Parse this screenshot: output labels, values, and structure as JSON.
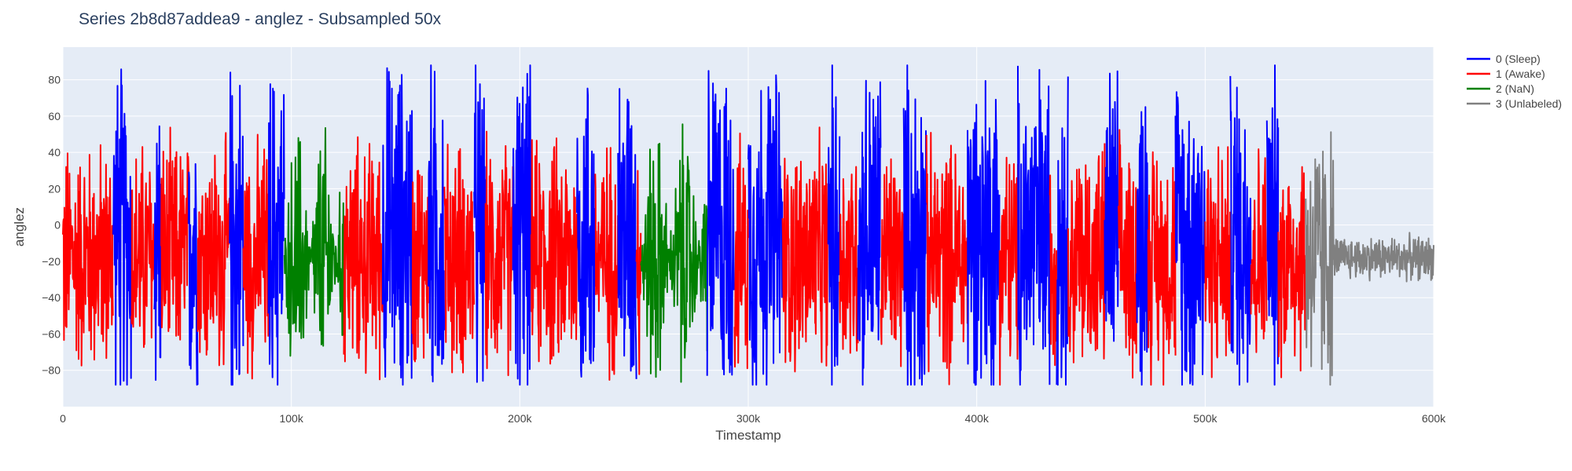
{
  "chart_data": {
    "type": "line",
    "title": "Series 2b8d87addea9 - anglez - Subsampled 50x",
    "xlabel": "Timestamp",
    "ylabel": "anglez",
    "xlim": [
      0,
      600000
    ],
    "ylim": [
      -100,
      98
    ],
    "x_ticks": [
      0,
      100000,
      200000,
      300000,
      400000,
      500000,
      600000
    ],
    "x_tick_labels": [
      "0",
      "100k",
      "200k",
      "300k",
      "400k",
      "500k",
      "600k"
    ],
    "y_ticks": [
      -80,
      -60,
      -40,
      -20,
      0,
      20,
      40,
      60,
      80
    ],
    "y_tick_labels": [
      "−80",
      "−60",
      "−40",
      "−20",
      "0",
      "20",
      "40",
      "60",
      "80"
    ],
    "grid": true,
    "legend_position": "top-right",
    "plot_background": "#e5ecf6",
    "series": [
      {
        "name": "0 (Sleep)",
        "color": "#0000ff",
        "segments": [
          [
            22000,
            30000
          ],
          [
            40000,
            43000
          ],
          [
            55000,
            59000
          ],
          [
            73000,
            79000
          ],
          [
            90000,
            97000
          ],
          [
            140000,
            153000
          ],
          [
            160000,
            167000
          ],
          [
            180000,
            185000
          ],
          [
            197000,
            205000
          ],
          [
            225000,
            233000
          ],
          [
            243000,
            251000
          ],
          [
            282000,
            294000
          ],
          [
            300000,
            315000
          ],
          [
            335000,
            340000
          ],
          [
            348000,
            358000
          ],
          [
            368000,
            378000
          ],
          [
            396000,
            410000
          ],
          [
            418000,
            432000
          ],
          [
            435000,
            440000
          ],
          [
            456000,
            462000
          ],
          [
            470000,
            475000
          ],
          [
            487000,
            500000
          ],
          [
            511000,
            520000
          ],
          [
            527000,
            532000
          ]
        ]
      },
      {
        "name": "1 (Awake)",
        "color": "#ff0000",
        "segments": [
          [
            0,
            22000
          ],
          [
            30000,
            40000
          ],
          [
            43000,
            55000
          ],
          [
            59000,
            73000
          ],
          [
            79000,
            90000
          ],
          [
            123000,
            140000
          ],
          [
            153000,
            160000
          ],
          [
            167000,
            180000
          ],
          [
            185000,
            197000
          ],
          [
            205000,
            225000
          ],
          [
            233000,
            243000
          ],
          [
            251000,
            253000
          ],
          [
            294000,
            300000
          ],
          [
            315000,
            335000
          ],
          [
            340000,
            348000
          ],
          [
            358000,
            368000
          ],
          [
            378000,
            396000
          ],
          [
            410000,
            418000
          ],
          [
            432000,
            435000
          ],
          [
            440000,
            456000
          ],
          [
            462000,
            470000
          ],
          [
            475000,
            487000
          ],
          [
            500000,
            511000
          ],
          [
            520000,
            527000
          ],
          [
            532000,
            544000
          ]
        ]
      },
      {
        "name": "2 (NaN)",
        "color": "#008000",
        "segments": [
          [
            97000,
            123000
          ],
          [
            253000,
            282000
          ]
        ]
      },
      {
        "name": "3 (Unlabeled)",
        "color": "#808080",
        "segments": [
          [
            544000,
            600000
          ]
        ]
      }
    ]
  }
}
